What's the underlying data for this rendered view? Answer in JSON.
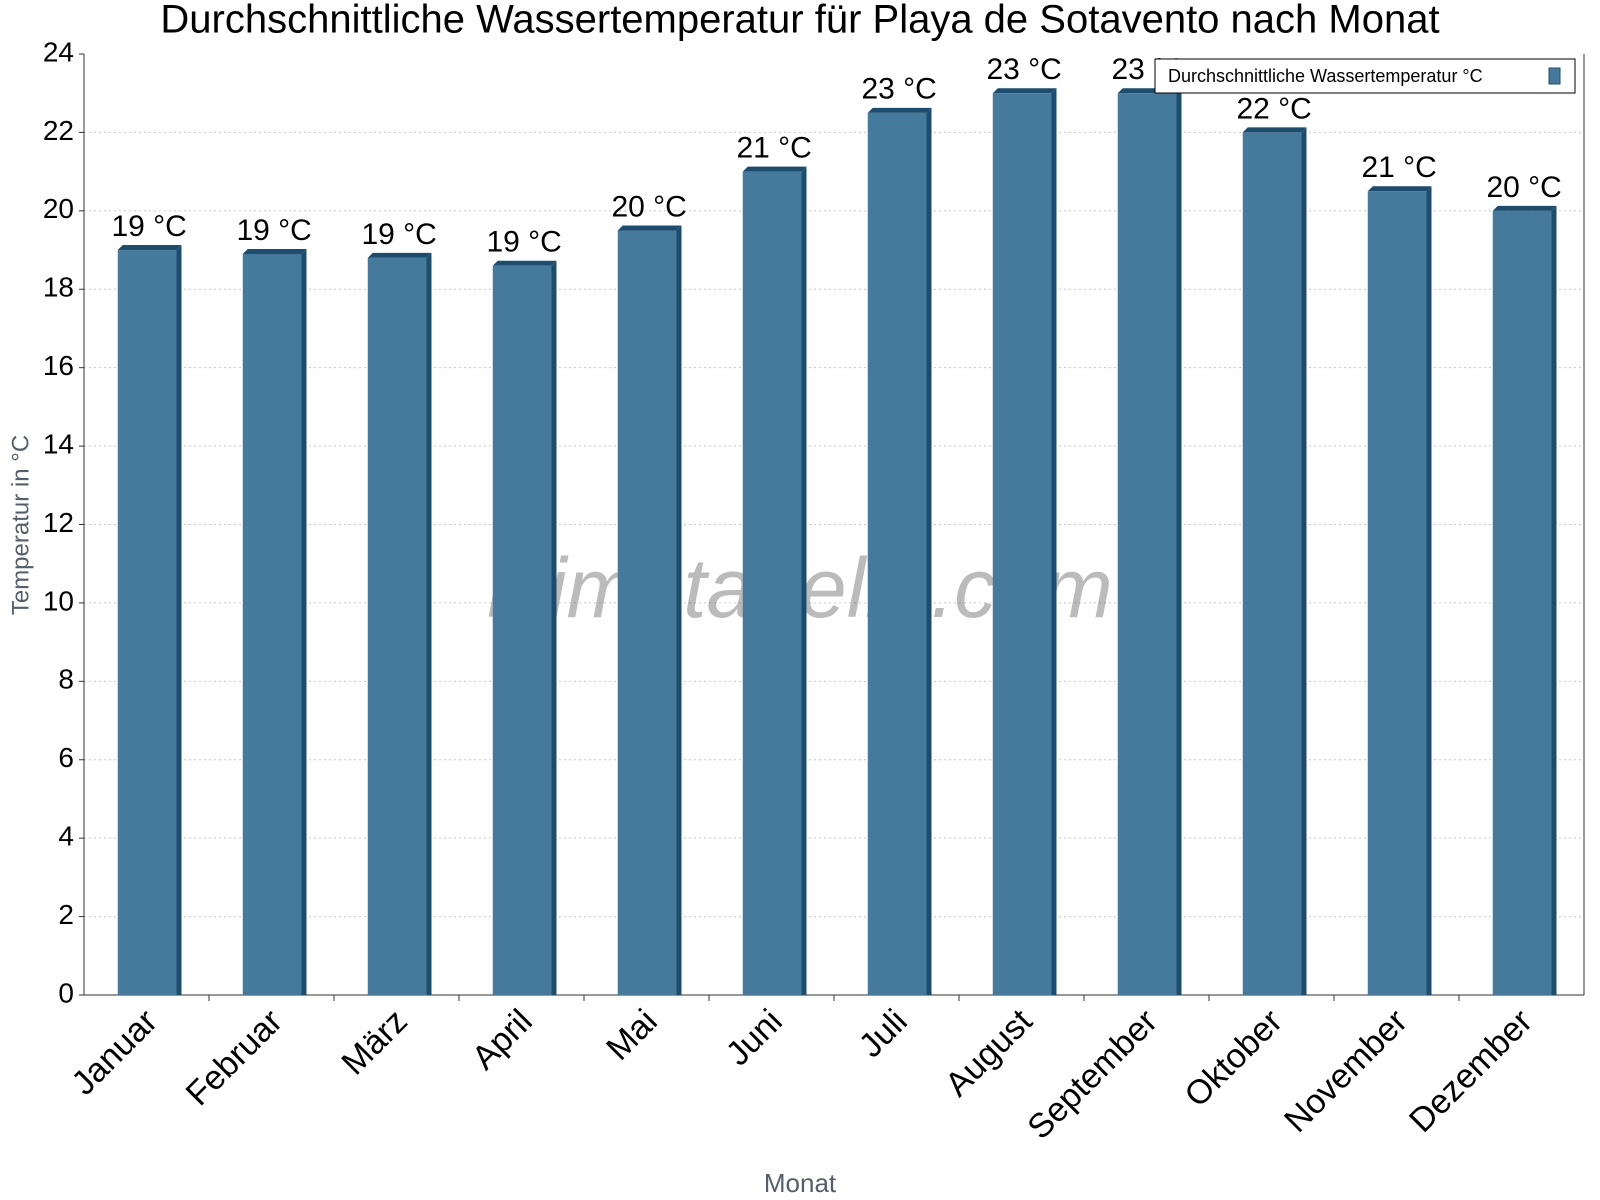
{
  "chart_data": {
    "type": "bar",
    "title": "Durchschnittliche Wassertemperatur für Playa de Sotavento nach Monat",
    "x_label": "Monat",
    "y_label": "Temperatur in °C",
    "watermark": "klimatabelle.com",
    "categories": [
      "Januar",
      "Februar",
      "März",
      "April",
      "Mai",
      "Juni",
      "Juli",
      "August",
      "September",
      "Oktober",
      "November",
      "Dezember"
    ],
    "series": [
      {
        "name": "Durchschnittliche Wassertemperatur °C",
        "color": "#467a9c",
        "values": [
          19.0,
          18.9,
          18.8,
          18.6,
          19.5,
          21.0,
          22.5,
          23.0,
          23.0,
          22.0,
          20.5,
          20.0
        ],
        "value_labels": [
          "19 °C",
          "19 °C",
          "19 °C",
          "19 °C",
          "20 °C",
          "21 °C",
          "23 °C",
          "23 °C",
          "23 °C",
          "22 °C",
          "21 °C",
          "20 °C"
        ]
      }
    ],
    "ylim": [
      0,
      24
    ],
    "yticks": [
      0,
      2,
      4,
      6,
      8,
      10,
      12,
      14,
      16,
      18,
      20,
      22,
      24
    ],
    "grid": true,
    "legend": "top-right"
  }
}
